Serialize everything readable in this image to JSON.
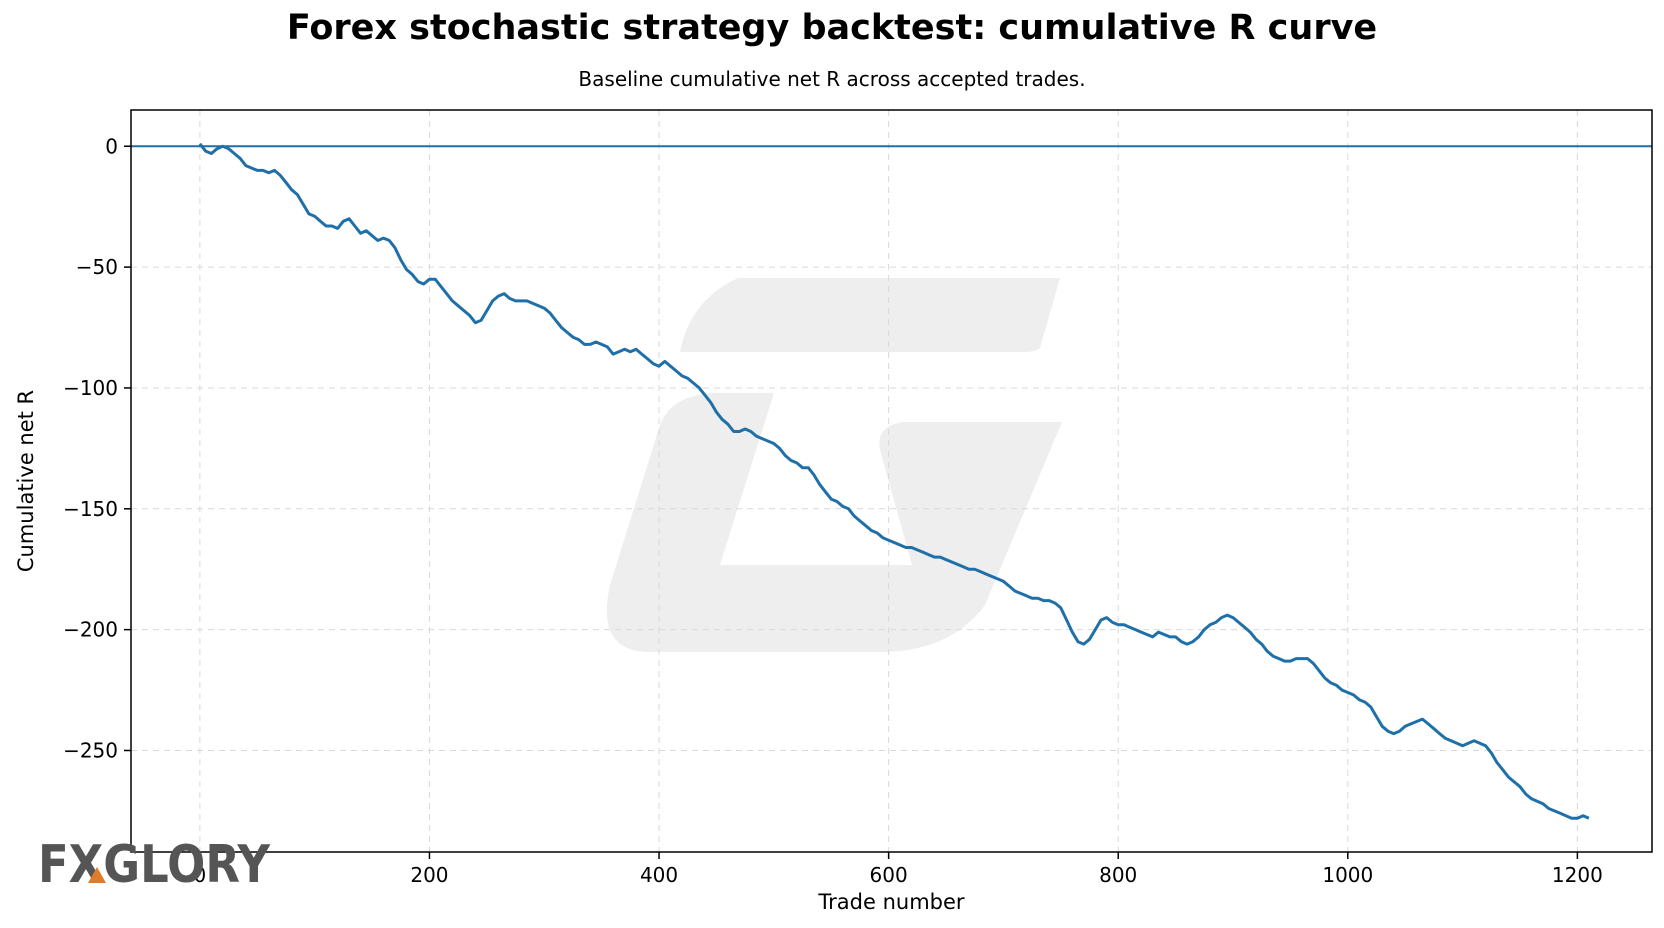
{
  "chart_data": {
    "type": "line",
    "title": "Forex stochastic strategy backtest: cumulative R curve",
    "subtitle": "Baseline cumulative net R across accepted trades.",
    "xlabel": "Trade number",
    "ylabel": "Cumulative net R",
    "xlim": [
      -60,
      1265
    ],
    "ylim": [
      -292,
      15
    ],
    "xticks": [
      0,
      200,
      400,
      600,
      800,
      1000,
      1200
    ],
    "xtick_labels": [
      "0",
      "200",
      "400",
      "600",
      "800",
      "1000",
      "1200"
    ],
    "yticks": [
      0,
      -50,
      -100,
      -150,
      -200,
      -250
    ],
    "ytick_labels": [
      "0",
      "−50",
      "−100",
      "−150",
      "−200",
      "−250"
    ],
    "grid": true,
    "reference_line": {
      "y": 0
    },
    "series": [
      {
        "color": "#1f6fa8",
        "points": [
          [
            0,
            1
          ],
          [
            5,
            -2
          ],
          [
            10,
            -3
          ],
          [
            15,
            -1
          ],
          [
            20,
            0
          ],
          [
            25,
            -1
          ],
          [
            30,
            -3
          ],
          [
            35,
            -5
          ],
          [
            40,
            -8
          ],
          [
            45,
            -9
          ],
          [
            50,
            -10
          ],
          [
            55,
            -10
          ],
          [
            60,
            -11
          ],
          [
            65,
            -10
          ],
          [
            70,
            -12
          ],
          [
            75,
            -15
          ],
          [
            80,
            -18
          ],
          [
            85,
            -20
          ],
          [
            90,
            -24
          ],
          [
            95,
            -28
          ],
          [
            100,
            -29
          ],
          [
            105,
            -31
          ],
          [
            110,
            -33
          ],
          [
            115,
            -33
          ],
          [
            120,
            -34
          ],
          [
            125,
            -31
          ],
          [
            130,
            -30
          ],
          [
            135,
            -33
          ],
          [
            140,
            -36
          ],
          [
            145,
            -35
          ],
          [
            150,
            -37
          ],
          [
            155,
            -39
          ],
          [
            160,
            -38
          ],
          [
            165,
            -39
          ],
          [
            170,
            -42
          ],
          [
            175,
            -47
          ],
          [
            180,
            -51
          ],
          [
            185,
            -53
          ],
          [
            190,
            -56
          ],
          [
            195,
            -57
          ],
          [
            200,
            -55
          ],
          [
            205,
            -55
          ],
          [
            210,
            -58
          ],
          [
            215,
            -61
          ],
          [
            220,
            -64
          ],
          [
            225,
            -66
          ],
          [
            230,
            -68
          ],
          [
            235,
            -70
          ],
          [
            240,
            -73
          ],
          [
            245,
            -72
          ],
          [
            250,
            -68
          ],
          [
            255,
            -64
          ],
          [
            260,
            -62
          ],
          [
            265,
            -61
          ],
          [
            270,
            -63
          ],
          [
            275,
            -64
          ],
          [
            280,
            -64
          ],
          [
            285,
            -64
          ],
          [
            290,
            -65
          ],
          [
            295,
            -66
          ],
          [
            300,
            -67
          ],
          [
            305,
            -69
          ],
          [
            310,
            -72
          ],
          [
            315,
            -75
          ],
          [
            320,
            -77
          ],
          [
            325,
            -79
          ],
          [
            330,
            -80
          ],
          [
            335,
            -82
          ],
          [
            340,
            -82
          ],
          [
            345,
            -81
          ],
          [
            350,
            -82
          ],
          [
            355,
            -83
          ],
          [
            360,
            -86
          ],
          [
            365,
            -85
          ],
          [
            370,
            -84
          ],
          [
            375,
            -85
          ],
          [
            380,
            -84
          ],
          [
            385,
            -86
          ],
          [
            390,
            -88
          ],
          [
            395,
            -90
          ],
          [
            400,
            -91
          ],
          [
            405,
            -89
          ],
          [
            410,
            -91
          ],
          [
            415,
            -93
          ],
          [
            420,
            -95
          ],
          [
            425,
            -96
          ],
          [
            430,
            -98
          ],
          [
            435,
            -100
          ],
          [
            440,
            -103
          ],
          [
            445,
            -106
          ],
          [
            450,
            -110
          ],
          [
            455,
            -113
          ],
          [
            460,
            -115
          ],
          [
            465,
            -118
          ],
          [
            470,
            -118
          ],
          [
            475,
            -117
          ],
          [
            480,
            -118
          ],
          [
            485,
            -120
          ],
          [
            490,
            -121
          ],
          [
            495,
            -122
          ],
          [
            500,
            -123
          ],
          [
            505,
            -125
          ],
          [
            510,
            -128
          ],
          [
            515,
            -130
          ],
          [
            520,
            -131
          ],
          [
            525,
            -133
          ],
          [
            530,
            -133
          ],
          [
            535,
            -136
          ],
          [
            540,
            -140
          ],
          [
            545,
            -143
          ],
          [
            550,
            -146
          ],
          [
            555,
            -147
          ],
          [
            560,
            -149
          ],
          [
            565,
            -150
          ],
          [
            570,
            -153
          ],
          [
            575,
            -155
          ],
          [
            580,
            -157
          ],
          [
            585,
            -159
          ],
          [
            590,
            -160
          ],
          [
            595,
            -162
          ],
          [
            600,
            -163
          ],
          [
            605,
            -164
          ],
          [
            610,
            -165
          ],
          [
            615,
            -166
          ],
          [
            620,
            -166
          ],
          [
            625,
            -167
          ],
          [
            630,
            -168
          ],
          [
            635,
            -169
          ],
          [
            640,
            -170
          ],
          [
            645,
            -170
          ],
          [
            650,
            -171
          ],
          [
            655,
            -172
          ],
          [
            660,
            -173
          ],
          [
            665,
            -174
          ],
          [
            670,
            -175
          ],
          [
            675,
            -175
          ],
          [
            680,
            -176
          ],
          [
            685,
            -177
          ],
          [
            690,
            -178
          ],
          [
            695,
            -179
          ],
          [
            700,
            -180
          ],
          [
            705,
            -182
          ],
          [
            710,
            -184
          ],
          [
            715,
            -185
          ],
          [
            720,
            -186
          ],
          [
            725,
            -187
          ],
          [
            730,
            -187
          ],
          [
            735,
            -188
          ],
          [
            740,
            -188
          ],
          [
            745,
            -189
          ],
          [
            750,
            -191
          ],
          [
            755,
            -196
          ],
          [
            760,
            -201
          ],
          [
            765,
            -205
          ],
          [
            770,
            -206
          ],
          [
            775,
            -204
          ],
          [
            780,
            -200
          ],
          [
            785,
            -196
          ],
          [
            790,
            -195
          ],
          [
            795,
            -197
          ],
          [
            800,
            -198
          ],
          [
            805,
            -198
          ],
          [
            810,
            -199
          ],
          [
            815,
            -200
          ],
          [
            820,
            -201
          ],
          [
            825,
            -202
          ],
          [
            830,
            -203
          ],
          [
            835,
            -201
          ],
          [
            840,
            -202
          ],
          [
            845,
            -203
          ],
          [
            850,
            -203
          ],
          [
            855,
            -205
          ],
          [
            860,
            -206
          ],
          [
            865,
            -205
          ],
          [
            870,
            -203
          ],
          [
            875,
            -200
          ],
          [
            880,
            -198
          ],
          [
            885,
            -197
          ],
          [
            890,
            -195
          ],
          [
            895,
            -194
          ],
          [
            900,
            -195
          ],
          [
            905,
            -197
          ],
          [
            910,
            -199
          ],
          [
            915,
            -201
          ],
          [
            920,
            -204
          ],
          [
            925,
            -206
          ],
          [
            930,
            -209
          ],
          [
            935,
            -211
          ],
          [
            940,
            -212
          ],
          [
            945,
            -213
          ],
          [
            950,
            -213
          ],
          [
            955,
            -212
          ],
          [
            960,
            -212
          ],
          [
            965,
            -212
          ],
          [
            970,
            -214
          ],
          [
            975,
            -217
          ],
          [
            980,
            -220
          ],
          [
            985,
            -222
          ],
          [
            990,
            -223
          ],
          [
            995,
            -225
          ],
          [
            1000,
            -226
          ],
          [
            1005,
            -227
          ],
          [
            1010,
            -229
          ],
          [
            1015,
            -230
          ],
          [
            1020,
            -232
          ],
          [
            1025,
            -236
          ],
          [
            1030,
            -240
          ],
          [
            1035,
            -242
          ],
          [
            1040,
            -243
          ],
          [
            1045,
            -242
          ],
          [
            1050,
            -240
          ],
          [
            1055,
            -239
          ],
          [
            1060,
            -238
          ],
          [
            1065,
            -237
          ],
          [
            1070,
            -239
          ],
          [
            1075,
            -241
          ],
          [
            1080,
            -243
          ],
          [
            1085,
            -245
          ],
          [
            1090,
            -246
          ],
          [
            1095,
            -247
          ],
          [
            1100,
            -248
          ],
          [
            1105,
            -247
          ],
          [
            1110,
            -246
          ],
          [
            1115,
            -247
          ],
          [
            1120,
            -248
          ],
          [
            1125,
            -251
          ],
          [
            1130,
            -255
          ],
          [
            1135,
            -258
          ],
          [
            1140,
            -261
          ],
          [
            1145,
            -263
          ],
          [
            1150,
            -265
          ],
          [
            1155,
            -268
          ],
          [
            1160,
            -270
          ],
          [
            1165,
            -271
          ],
          [
            1170,
            -272
          ],
          [
            1175,
            -274
          ],
          [
            1180,
            -275
          ],
          [
            1185,
            -276
          ],
          [
            1190,
            -277
          ],
          [
            1195,
            -278
          ],
          [
            1200,
            -278
          ],
          [
            1205,
            -277
          ],
          [
            1210,
            -278
          ]
        ]
      }
    ]
  },
  "logo": {
    "text": "FXGLORY",
    "accent_color": "#e07b2a"
  },
  "watermark": {
    "color": "#eeeeee"
  }
}
